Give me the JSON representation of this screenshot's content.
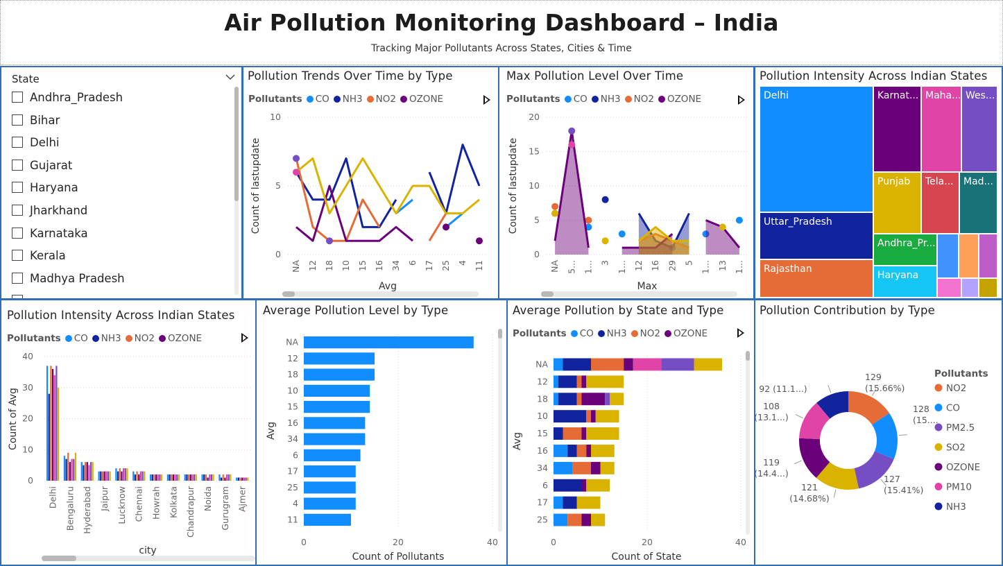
{
  "header": {
    "title": "Air Pollution Monitoring Dashboard – India",
    "subtitle": "Tracking Major Pollutants Across States, Cities & Time"
  },
  "colors": {
    "CO": "#118DFF",
    "NH3": "#12239E",
    "NO2": "#E66C37",
    "OZONE": "#6B007B",
    "PM10": "#E044A7",
    "PM2.5": "#744EC2",
    "SO2": "#D9B300",
    "border": "#2E6FB5"
  },
  "slicer": {
    "title": "State",
    "items": [
      "Andhra_Pradesh",
      "Bihar",
      "Delhi",
      "Gujarat",
      "Haryana",
      "Jharkhand",
      "Karnataka",
      "Kerala",
      "Madhya Pradesh"
    ]
  },
  "legend_label": "Pollutants",
  "legend4": [
    "CO",
    "NH3",
    "NO2",
    "OZONE"
  ],
  "panels": {
    "trends": {
      "title": "Pollution Trends Over Time by Type"
    },
    "max": {
      "title": "Max Pollution Level Over Time"
    },
    "tree": {
      "title": "Pollution Intensity Across Indian States"
    },
    "city": {
      "title": "Pollution Intensity Across Indian States"
    },
    "avgbar": {
      "title": "Average Pollution Level by Type"
    },
    "stacked": {
      "title": "Average Pollution by State and Type"
    },
    "donut": {
      "title": "Pollution Contribution by Type"
    }
  },
  "treemap": {
    "cells": [
      {
        "label": "Delhi",
        "color": "#118DFF"
      },
      {
        "label": "Uttar_Pradesh",
        "color": "#12239E"
      },
      {
        "label": "Rajasthan",
        "color": "#E66C37"
      },
      {
        "label": "Karnat...",
        "color": "#6B007B"
      },
      {
        "label": "Maha...",
        "color": "#E044A7"
      },
      {
        "label": "Wes...",
        "color": "#744EC2"
      },
      {
        "label": "Punjab",
        "color": "#D9B300"
      },
      {
        "label": "Tela...",
        "color": "#D64550"
      },
      {
        "label": "Mad...",
        "color": "#197278"
      },
      {
        "label": "Andhra_Pr...",
        "color": "#1AAB40"
      },
      {
        "label": "Haryana",
        "color": "#15C6F4"
      },
      {
        "label": "",
        "color": "#4092FF"
      },
      {
        "label": "",
        "color": "#FFA058"
      },
      {
        "label": "",
        "color": "#BE5DC9"
      },
      {
        "label": "",
        "color": "#F472D0"
      },
      {
        "label": "",
        "color": "#B5A1FF"
      },
      {
        "label": "",
        "color": "#C4A200"
      }
    ]
  },
  "chart_data": [
    {
      "id": "trends",
      "type": "line",
      "title": "Pollution Trends Over Time by Type",
      "xlabel": "Avg",
      "ylabel": "Count of lastupdate",
      "ylim": [
        0,
        10
      ],
      "yticks": [
        0,
        5,
        10
      ],
      "categories": [
        "NA",
        "12",
        "18",
        "10",
        "15",
        "16",
        "34",
        "6",
        "17",
        "25",
        "4",
        "11"
      ],
      "series": [
        {
          "name": "CO",
          "values": [
            null,
            null,
            null,
            null,
            null,
            null,
            3,
            4,
            null,
            2,
            3,
            null
          ]
        },
        {
          "name": "NH3",
          "values": [
            6,
            4,
            4,
            7,
            2,
            2,
            4,
            null,
            6,
            3,
            8,
            5
          ]
        },
        {
          "name": "NO2",
          "values": [
            7,
            2,
            1,
            1,
            4,
            2,
            null,
            null,
            1,
            3,
            null,
            null
          ]
        },
        {
          "name": "OZONE",
          "values": [
            2,
            1,
            5,
            1,
            1,
            1,
            2,
            1,
            null,
            2,
            null,
            1
          ]
        },
        {
          "name": "SO2",
          "values": [
            6,
            7,
            3,
            5,
            7,
            5,
            3,
            5,
            5,
            3,
            3,
            4
          ]
        },
        {
          "name": "PM10",
          "values": [
            6,
            null,
            null,
            null,
            null,
            null,
            null,
            null,
            null,
            null,
            null,
            null
          ]
        },
        {
          "name": "PM2.5",
          "values": [
            7,
            null,
            1,
            null,
            null,
            null,
            null,
            null,
            null,
            null,
            null,
            null
          ]
        }
      ]
    },
    {
      "id": "max",
      "type": "area",
      "title": "Max Pollution Level Over Time",
      "xlabel": "Max",
      "ylabel": "Count of lastupdate",
      "ylim": [
        0,
        20
      ],
      "yticks": [
        0,
        5,
        10,
        15,
        20
      ],
      "categories": [
        "NA",
        "5...",
        "1...",
        "3",
        "1...",
        "12",
        "16",
        "29",
        "5",
        "1...",
        "13",
        "1..."
      ],
      "series": [
        {
          "name": "CO",
          "values": [
            6,
            null,
            4,
            null,
            3,
            null,
            null,
            1,
            null,
            3,
            null,
            5
          ]
        },
        {
          "name": "NH3",
          "values": [
            null,
            null,
            null,
            8,
            null,
            6,
            2,
            1,
            6,
            null,
            null,
            null
          ]
        },
        {
          "name": "NO2",
          "values": [
            7,
            null,
            5,
            null,
            null,
            2,
            3,
            2,
            1,
            null,
            null,
            null
          ]
        },
        {
          "name": "OZONE",
          "values": [
            2,
            18,
            1,
            null,
            1,
            1,
            1,
            3,
            null,
            5,
            4,
            1
          ]
        },
        {
          "name": "SO2",
          "values": [
            6,
            null,
            null,
            2,
            null,
            2,
            4,
            2,
            2,
            null,
            4,
            null
          ]
        },
        {
          "name": "PM2.5",
          "values": [
            null,
            18,
            null,
            null,
            null,
            null,
            null,
            null,
            null,
            null,
            null,
            null
          ]
        },
        {
          "name": "PM10",
          "values": [
            null,
            16,
            null,
            null,
            null,
            null,
            null,
            null,
            null,
            null,
            null,
            null
          ]
        }
      ]
    },
    {
      "id": "tree",
      "type": "treemap",
      "title": "Pollution Intensity Across Indian States",
      "categories": [
        "Delhi",
        "Uttar_Pradesh",
        "Rajasthan",
        "Karnat...",
        "Maha...",
        "Wes...",
        "Punjab",
        "Tela...",
        "Mad...",
        "Andhra_Pr...",
        "Haryana"
      ]
    },
    {
      "id": "city",
      "type": "bar",
      "title": "Pollution Intensity Across Indian States",
      "xlabel": "city",
      "ylabel": "Count of Avg",
      "ylim": [
        0,
        40
      ],
      "yticks": [
        0,
        10,
        20,
        30,
        40
      ],
      "categories": [
        "Delhi",
        "Bengaluru",
        "Hyderabad",
        "Jaipur",
        "Lucknow",
        "Chennai",
        "Howrah",
        "Kolkata",
        "Chandrapur",
        "Noida",
        "Gurugram",
        "Ajmer"
      ],
      "series": [
        {
          "name": "CO",
          "values": [
            37,
            8,
            6,
            3,
            4,
            3,
            2,
            2,
            2,
            2,
            2,
            1
          ]
        },
        {
          "name": "NH3",
          "values": [
            28,
            7,
            5,
            3,
            3,
            2,
            2,
            2,
            2,
            2,
            1,
            1
          ]
        },
        {
          "name": "NO2",
          "values": [
            37,
            9,
            6,
            3,
            4,
            3,
            2,
            2,
            2,
            2,
            2,
            1
          ]
        },
        {
          "name": "OZONE",
          "values": [
            36,
            6,
            6,
            3,
            3,
            2,
            2,
            2,
            2,
            1,
            1,
            1
          ]
        },
        {
          "name": "PM10",
          "values": [
            34,
            7,
            5,
            3,
            4,
            3,
            2,
            2,
            2,
            2,
            2,
            1
          ]
        },
        {
          "name": "PM2.5",
          "values": [
            37,
            7,
            6,
            3,
            4,
            3,
            2,
            2,
            2,
            2,
            2,
            1
          ]
        },
        {
          "name": "SO2",
          "values": [
            30,
            9,
            6,
            3,
            4,
            3,
            2,
            2,
            2,
            2,
            2,
            1
          ]
        }
      ]
    },
    {
      "id": "avgbar",
      "type": "bar",
      "title": "Average Pollution Level by Type",
      "xlabel": "Count of Pollutants",
      "ylabel": "Avg",
      "xlim": [
        0,
        40
      ],
      "xticks": [
        0,
        20,
        40
      ],
      "categories": [
        "NA",
        "12",
        "18",
        "10",
        "15",
        "16",
        "34",
        "6",
        "17",
        "25",
        "4",
        "11"
      ],
      "values": [
        36,
        15,
        15,
        14,
        14,
        13,
        13,
        12,
        11,
        11,
        11,
        10
      ]
    },
    {
      "id": "stacked",
      "type": "bar",
      "title": "Average Pollution by State and Type",
      "xlabel": "Count of State",
      "ylabel": "Avg",
      "xlim": [
        0,
        40
      ],
      "xticks": [
        0,
        20,
        40
      ],
      "categories": [
        "NA",
        "12",
        "18",
        "10",
        "15",
        "16",
        "34",
        "6",
        "17",
        "25"
      ],
      "series": [
        {
          "name": "CO",
          "values": [
            2,
            1,
            1,
            0,
            0,
            3,
            4,
            0,
            2,
            3
          ]
        },
        {
          "name": "NH3",
          "values": [
            6,
            4,
            4,
            7,
            2,
            2,
            0,
            6,
            3,
            0
          ]
        },
        {
          "name": "NO2",
          "values": [
            7,
            1,
            1,
            1,
            4,
            2,
            4,
            0,
            0,
            3
          ]
        },
        {
          "name": "OZONE",
          "values": [
            2,
            1,
            5,
            1,
            1,
            1,
            2,
            1,
            0,
            2
          ]
        },
        {
          "name": "PM10",
          "values": [
            6,
            0,
            0,
            0,
            0,
            0,
            0,
            0,
            0,
            0
          ]
        },
        {
          "name": "PM2.5",
          "values": [
            7,
            0,
            1,
            0,
            0,
            0,
            0,
            0,
            0,
            0
          ]
        },
        {
          "name": "SO2",
          "values": [
            6,
            8,
            3,
            5,
            7,
            5,
            3,
            5,
            5,
            3
          ]
        }
      ]
    },
    {
      "id": "donut",
      "type": "pie",
      "title": "Pollution Contribution by Type",
      "legend_title": "Pollutants",
      "slices": [
        {
          "name": "NO2",
          "value": 129,
          "label": "129",
          "pct": "(15.66%)"
        },
        {
          "name": "CO",
          "value": 128,
          "label": "128",
          "pct": "(15...."
        },
        {
          "name": "PM2.5",
          "value": 127,
          "label": "127",
          "pct": "(15.41%)"
        },
        {
          "name": "SO2",
          "value": 121,
          "label": "121",
          "pct": "(14.68%)"
        },
        {
          "name": "OZONE",
          "value": 119,
          "label": "119",
          "pct": "(14.4...)"
        },
        {
          "name": "PM10",
          "value": 108,
          "label": "108",
          "pct": "(13.1...)"
        },
        {
          "name": "NH3",
          "value": 92,
          "label": "92 (11.1...)",
          "pct": ""
        }
      ]
    }
  ]
}
